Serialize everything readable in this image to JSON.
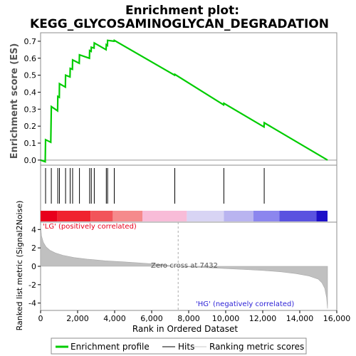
{
  "chart_data": {
    "type": "line",
    "title_line1": "Enrichment plot:",
    "title_line2": "KEGG_GLYCOSAMINOGLYCAN_DEGRADATION",
    "es_ylabel": "Enrichment score (ES)",
    "metric_ylabel": "Ranked list metric (Signal2Noise)",
    "xlabel": "Rank in Ordered Dataset",
    "xlim": [
      0,
      16000
    ],
    "es_ylim": [
      -0.03,
      0.75
    ],
    "metric_ylim": [
      -4.8,
      4.8
    ],
    "x_ticks": [
      0,
      2000,
      4000,
      6000,
      8000,
      10000,
      12000,
      14000,
      16000
    ],
    "x_tick_labels": [
      "0",
      "2,000",
      "4,000",
      "6,000",
      "8,000",
      "10,000",
      "12,000",
      "14,000",
      "16,000"
    ],
    "es_ticks": [
      0.0,
      0.1,
      0.2,
      0.3,
      0.4,
      0.5,
      0.6,
      0.7
    ],
    "es_tick_labels": [
      "0.0",
      "0.1",
      "0.2",
      "0.3",
      "0.4",
      "0.5",
      "0.6",
      "0.7"
    ],
    "metric_ticks": [
      -4,
      -2,
      0,
      2,
      4
    ],
    "metric_tick_labels": [
      "-4",
      "-2",
      "0",
      "2",
      "4"
    ],
    "hits": [
      270,
      580,
      930,
      1020,
      1350,
      1600,
      1730,
      2100,
      2650,
      2740,
      2900,
      3550,
      3620,
      3980,
      7250,
      9900,
      12080
    ],
    "es_profile": {
      "x": [
        0,
        250,
        270,
        550,
        580,
        920,
        930,
        1010,
        1020,
        1340,
        1350,
        1590,
        1600,
        1720,
        1730,
        2090,
        2100,
        2640,
        2650,
        2730,
        2740,
        2890,
        2900,
        3540,
        3550,
        3610,
        3620,
        3970,
        3980,
        7240,
        7250,
        9890,
        9900,
        12070,
        12080,
        15500
      ],
      "y": [
        0.0,
        -0.01,
        0.12,
        0.105,
        0.315,
        0.29,
        0.375,
        0.37,
        0.45,
        0.43,
        0.5,
        0.49,
        0.54,
        0.535,
        0.59,
        0.57,
        0.62,
        0.6,
        0.645,
        0.64,
        0.665,
        0.66,
        0.69,
        0.65,
        0.68,
        0.675,
        0.705,
        0.7,
        0.705,
        0.5,
        0.505,
        0.325,
        0.335,
        0.195,
        0.22,
        0.0
      ]
    },
    "ranked_metric": {
      "x": [
        0,
        50,
        150,
        300,
        500,
        800,
        1200,
        1800,
        2500,
        3500,
        4500,
        5500,
        6500,
        7000,
        7432,
        8000,
        9000,
        10000,
        11000,
        12000,
        13000,
        13800,
        14500,
        15000,
        15200,
        15350,
        15450,
        15500
      ],
      "y": [
        4.5,
        3.3,
        2.6,
        2.1,
        1.75,
        1.45,
        1.2,
        0.95,
        0.78,
        0.6,
        0.48,
        0.35,
        0.2,
        0.08,
        0.0,
        -0.06,
        -0.15,
        -0.25,
        -0.35,
        -0.45,
        -0.6,
        -0.8,
        -1.05,
        -1.4,
        -1.8,
        -2.4,
        -3.4,
        -4.6
      ]
    },
    "heatmap_bar": {
      "segments": [
        {
          "from": 0,
          "to": 900,
          "color": "#e8001c"
        },
        {
          "from": 900,
          "to": 2700,
          "color": "#f0232f"
        },
        {
          "from": 2700,
          "to": 3900,
          "color": "#f2545a"
        },
        {
          "from": 3900,
          "to": 5500,
          "color": "#f58a8c"
        },
        {
          "from": 5500,
          "to": 7900,
          "color": "#f8bcd8"
        },
        {
          "from": 7900,
          "to": 9900,
          "color": "#d8d4f4"
        },
        {
          "from": 9900,
          "to": 11500,
          "color": "#b9b4f0"
        },
        {
          "from": 11500,
          "to": 12900,
          "color": "#8c86ee"
        },
        {
          "from": 12900,
          "to": 14900,
          "color": "#5a52e0"
        },
        {
          "from": 14900,
          "to": 15500,
          "color": "#1d0fc8"
        }
      ]
    },
    "annotations": {
      "pos_label": "'LG' (positively correlated)",
      "neg_label": "'HG' (negatively correlated)",
      "zero_cross": "Zero cross at 7432",
      "zero_cross_x": 7432
    },
    "legend": [
      {
        "label": "Enrichment profile",
        "color": "#00cc00",
        "style": "thick"
      },
      {
        "label": "Hits",
        "color": "#000000",
        "style": "thin"
      },
      {
        "label": "Ranking metric scores",
        "color": "#c8c8c8",
        "style": "thin"
      }
    ],
    "colors": {
      "profile": "#00cc00",
      "hits": "#000000",
      "metric_fill": "#c0c0c0",
      "pos_text": "#e8001c",
      "neg_text": "#2a1fd6",
      "zero_text": "#555555"
    }
  }
}
